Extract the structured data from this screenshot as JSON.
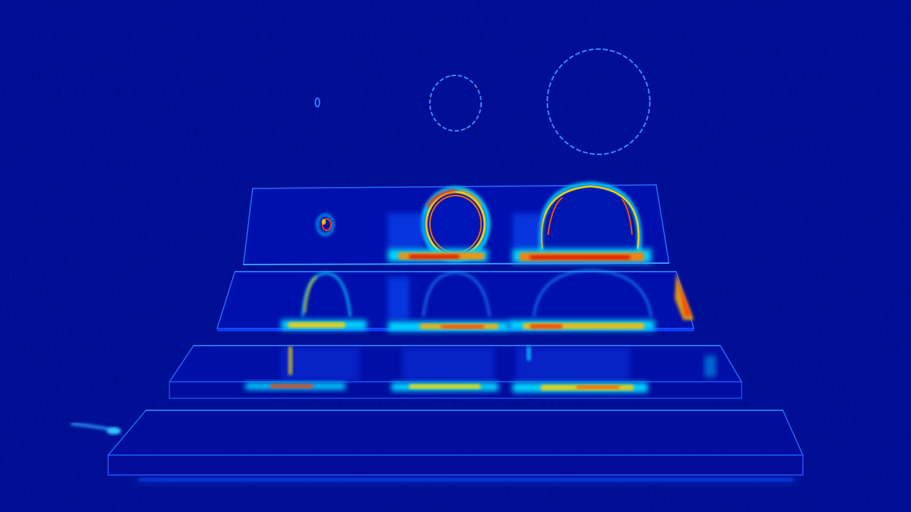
{
  "image": {
    "kind": "false-color error / difference heat map of a stepped stack of plates",
    "colormap": "jet",
    "colors": {
      "background": "#000a8c",
      "low": "#0010b0",
      "mid_low": "#0050ff",
      "mid": "#00d0ff",
      "mid_high": "#ffe000",
      "high": "#ff7a00",
      "peak": "#e01000"
    },
    "objects": [
      "floating-ring-small",
      "floating-ring-medium",
      "floating-ring-large",
      "plate-tier-1",
      "plate-tier-2",
      "plate-tier-3",
      "plate-tier-4-base"
    ]
  }
}
